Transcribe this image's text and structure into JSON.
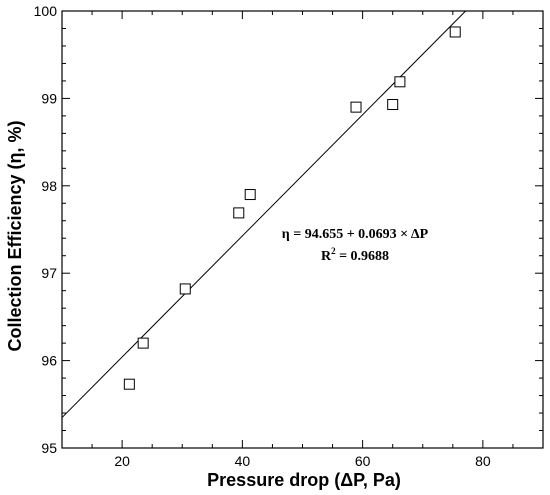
{
  "chart_data": {
    "type": "scatter",
    "title": "",
    "xlabel": "Pressure drop (ΔP, Pa)",
    "ylabel": "Collection Efficiency (η, %)",
    "xlim": [
      10,
      90
    ],
    "ylim": [
      95,
      100
    ],
    "xticks": [
      20,
      40,
      60,
      80
    ],
    "yticks": [
      95,
      96,
      97,
      98,
      99,
      100
    ],
    "x_minor_step": 5,
    "y_minor_step": 0.2,
    "grid": false,
    "marker": "open-square",
    "series": [
      {
        "x": [
          21.2,
          23.5,
          30.5,
          39.4,
          41.3,
          58.9,
          65.0,
          66.2,
          75.4
        ],
        "y": [
          95.73,
          96.2,
          96.82,
          97.69,
          97.9,
          98.9,
          98.93,
          99.19,
          99.76
        ]
      }
    ],
    "fit": {
      "intercept": 94.655,
      "slope": 0.0693
    },
    "annotation": {
      "equation": "η = 94.655 + 0.0693 × ΔP",
      "r2_prefix": "R",
      "r2_sup": "2",
      "r2_suffix": " = 0.9688"
    }
  }
}
